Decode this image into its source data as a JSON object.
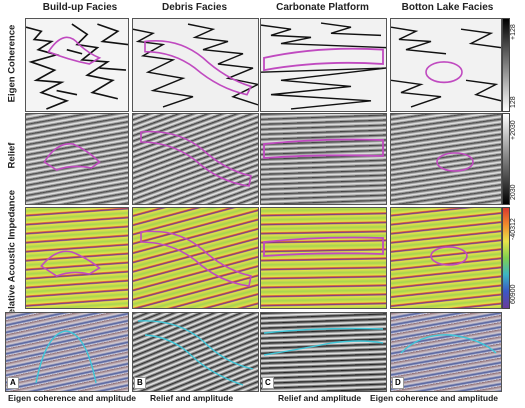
{
  "columns": [
    "Build-up Facies",
    "Debris Facies",
    "Carbonate Platform",
    "Botton Lake Facies"
  ],
  "rows": [
    "Eigen Coherence",
    "Relief",
    "Relative Acoustic Impedance"
  ],
  "scales": {
    "coherence": {
      "top": "+128",
      "bottom": "128"
    },
    "relief": {
      "top": "+2030",
      "bottom": "2030"
    },
    "impedance": {
      "top": "-40312",
      "bottom": "60900"
    }
  },
  "letters": [
    "A",
    "B",
    "C",
    "D"
  ],
  "captions": [
    "Eigen coherence and amplitude",
    "Relief and amplitude",
    "Relief and amplitude",
    "Eigen coherence and amplitude"
  ]
}
